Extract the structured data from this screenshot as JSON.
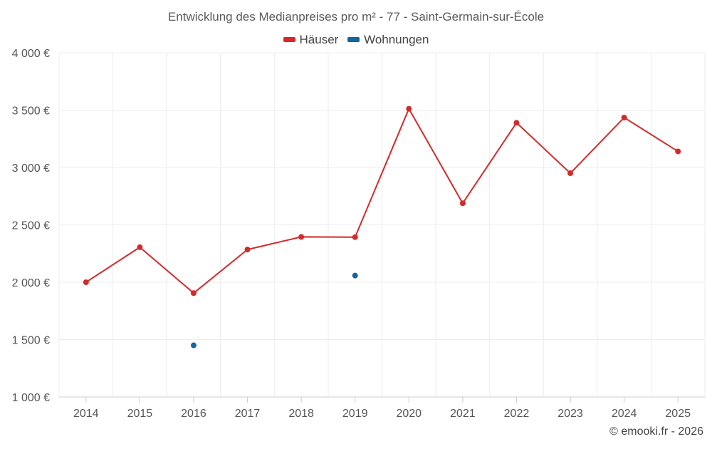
{
  "chart_data": {
    "type": "line",
    "title": "Entwicklung des Medianpreises pro m² - 77 - Saint-Germain-sur-École",
    "categories": [
      "2014",
      "2015",
      "2016",
      "2017",
      "2018",
      "2019",
      "2020",
      "2021",
      "2022",
      "2023",
      "2024",
      "2025"
    ],
    "y_ticks": [
      1000,
      1500,
      2000,
      2500,
      3000,
      3500,
      4000
    ],
    "y_tick_labels": [
      "1 000 €",
      "1 500 €",
      "2 000 €",
      "2 500 €",
      "3 000 €",
      "3 500 €",
      "4 000 €"
    ],
    "ylim": [
      1000,
      4000
    ],
    "grid": true,
    "legend_position": "top-center",
    "series": [
      {
        "name": "Häuser",
        "color": "#d42a2a",
        "values": [
          2000,
          2305,
          1905,
          2285,
          2395,
          2393,
          3512,
          2688,
          3390,
          2950,
          3435,
          3140
        ]
      },
      {
        "name": "Wohnungen",
        "color": "#1565a0",
        "values": [
          null,
          null,
          1450,
          null,
          null,
          2058,
          null,
          null,
          null,
          null,
          null,
          null
        ]
      }
    ]
  },
  "copyright": "© emooki.fr - 2026"
}
